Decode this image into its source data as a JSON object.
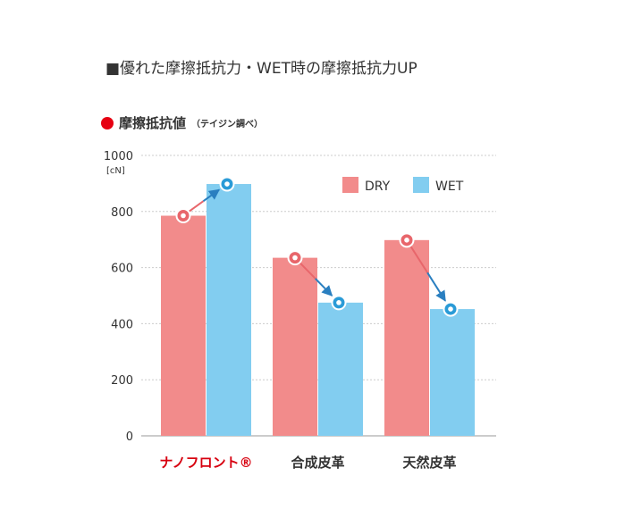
{
  "heading": "■優れた摩擦抵抗力・WET時の摩擦抵抗力UP",
  "subheading": {
    "title": "摩擦抵抗値",
    "note": "（テイジン調べ）"
  },
  "colors": {
    "accent_red": "#e60012",
    "dry": "#f28b8b",
    "wet": "#82cdf0",
    "dry_marker": "#e8666b",
    "wet_marker": "#2a9bd7",
    "arrow_dry": "#e8666b",
    "arrow_wet": "#2a7fc0",
    "grid": "#cccccc",
    "category_highlight": "#d7000f",
    "text": "#333333"
  },
  "chart_data": {
    "type": "bar",
    "categories": [
      "ナノフロント®",
      "合成皮革",
      "天然皮革"
    ],
    "series": [
      {
        "name": "DRY",
        "values": [
          785,
          635,
          698
        ]
      },
      {
        "name": "WET",
        "values": [
          898,
          475,
          452
        ]
      }
    ],
    "y_unit_label": "[cN]",
    "ylim": [
      0,
      1000
    ],
    "yticks": [
      "0",
      "200",
      "400",
      "600",
      "800",
      "1000"
    ],
    "highlight_category_index": 0,
    "grid": true,
    "legend_position": "top-right"
  }
}
